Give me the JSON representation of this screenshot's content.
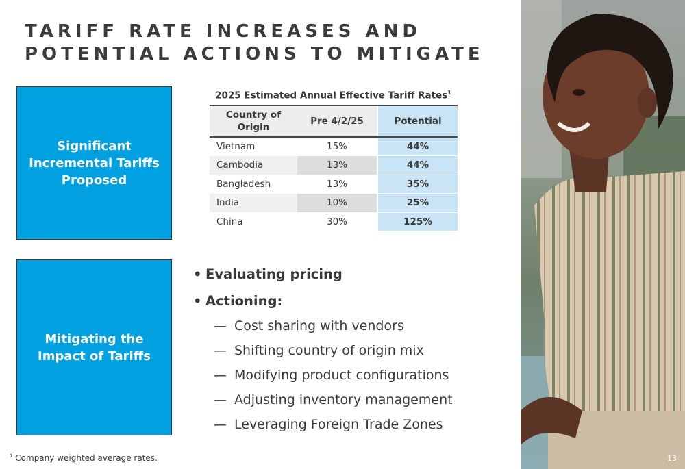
{
  "title": {
    "line1": "TARIFF RATE INCREASES AND",
    "line2": "POTENTIAL ACTIONS TO MITIGATE"
  },
  "boxes": {
    "box1": {
      "line1": "Significant",
      "line2": "Incremental Tariffs",
      "line3": "Proposed"
    },
    "box2": {
      "line1": "Mitigating the",
      "line2": "Impact of Tariffs"
    }
  },
  "table": {
    "title": "2025 Estimated Annual Effective Tariff Rates",
    "title_sup": "1",
    "headers": {
      "country": "Country of Origin",
      "pre": "Pre 4/2/25",
      "potential": "Potential"
    },
    "rows": [
      {
        "country": "Vietnam",
        "pre": "15%",
        "potential": "44%"
      },
      {
        "country": "Cambodia",
        "pre": "13%",
        "potential": "44%"
      },
      {
        "country": "Bangladesh",
        "pre": "13%",
        "potential": "35%"
      },
      {
        "country": "India",
        "pre": "10%",
        "potential": "25%"
      },
      {
        "country": "China",
        "pre": "30%",
        "potential": "125%"
      }
    ]
  },
  "bullets": {
    "b1": "Evaluating pricing",
    "b2": "Actioning:",
    "subs": [
      "Cost sharing with vendors",
      "Shifting country of origin mix",
      "Modifying product configurations",
      "Adjusting inventory management",
      "Leveraging Foreign Trade Zones"
    ],
    "bullet_glyph": "•",
    "dash_glyph": "—"
  },
  "footnote": {
    "sup": "1",
    "text": " Company weighted average rates."
  },
  "page_number": "13",
  "colors": {
    "accent_box": "#00a0e1",
    "potential_col": "#c9e4f4"
  }
}
